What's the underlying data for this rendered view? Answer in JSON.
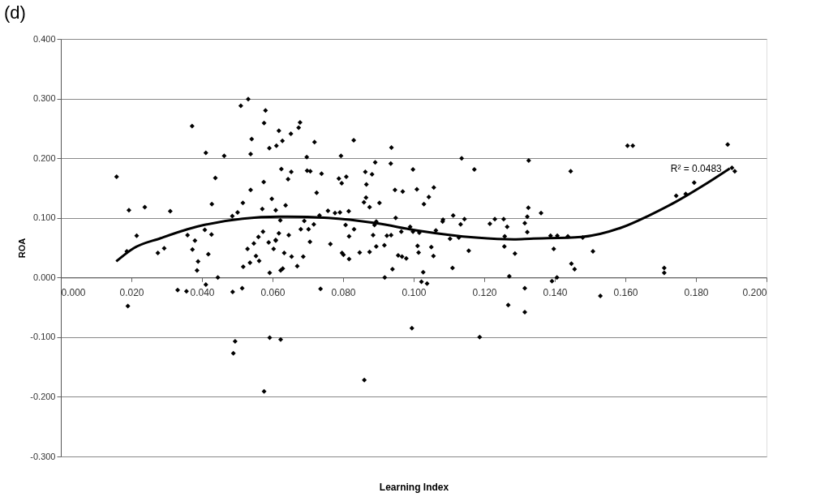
{
  "chart_data": {
    "type": "scatter",
    "title": "(d)",
    "xlabel": "Learning Index",
    "ylabel": "ROA",
    "xlim": [
      0.0,
      0.2
    ],
    "ylim": [
      -0.3,
      0.4
    ],
    "xticks": [
      {
        "value": 0.0,
        "label": "0.000"
      },
      {
        "value": 0.02,
        "label": "0.020"
      },
      {
        "value": 0.04,
        "label": "0.040"
      },
      {
        "value": 0.06,
        "label": "0.060"
      },
      {
        "value": 0.08,
        "label": "0.080"
      },
      {
        "value": 0.1,
        "label": "0.100"
      },
      {
        "value": 0.12,
        "label": "0.120"
      },
      {
        "value": 0.14,
        "label": "0.140"
      },
      {
        "value": 0.16,
        "label": "0.160"
      },
      {
        "value": 0.18,
        "label": "0.180"
      },
      {
        "value": 0.2,
        "label": "0.200"
      }
    ],
    "yticks": [
      {
        "value": -0.3,
        "label": "-0.300"
      },
      {
        "value": -0.2,
        "label": "-0.200"
      },
      {
        "value": -0.1,
        "label": "-0.100"
      },
      {
        "value": 0.0,
        "label": "0.000"
      },
      {
        "value": 0.1,
        "label": "0.100"
      },
      {
        "value": 0.2,
        "label": "0.200"
      },
      {
        "value": 0.3,
        "label": "0.300"
      },
      {
        "value": 0.4,
        "label": "0.400"
      }
    ],
    "grid": "y",
    "annotations": [
      "R² = 0.0483"
    ],
    "series": [
      {
        "type": "scatter",
        "color": "#000000",
        "marker": "diamond",
        "x": [
          0.0531,
          0.051,
          0.058,
          0.0372,
          0.0576,
          0.0618,
          0.0652,
          0.0541,
          0.0628,
          0.0611,
          0.0591,
          0.0411,
          0.0538,
          0.0463,
          0.0158,
          0.0438,
          0.0625,
          0.0653,
          0.0644,
          0.0575,
          0.0538,
          0.0598,
          0.0516,
          0.0428,
          0.0571,
          0.0609,
          0.0637,
          0.0193,
          0.0238,
          0.031,
          0.0501,
          0.0486,
          0.0622,
          0.0215,
          0.0359,
          0.0408,
          0.0427,
          0.038,
          0.0573,
          0.056,
          0.0618,
          0.0646,
          0.0609,
          0.0187,
          0.0275,
          0.0293,
          0.0373,
          0.0418,
          0.0389,
          0.0386,
          0.0445,
          0.0411,
          0.0331,
          0.0356,
          0.0487,
          0.0514,
          0.019,
          0.0494,
          0.0489,
          0.0592,
          0.0623,
          0.0576,
          0.0529,
          0.0517,
          0.0536,
          0.0553,
          0.0562,
          0.0547,
          0.0603,
          0.0633,
          0.0654,
          0.0592,
          0.0623,
          0.0629,
          0.0589,
          0.0609,
          0.0678,
          0.0674,
          0.0719,
          0.083,
          0.0937,
          0.0697,
          0.0794,
          0.0891,
          0.0935,
          0.1136,
          0.1172,
          0.1326,
          0.0998,
          0.0698,
          0.0707,
          0.0739,
          0.0863,
          0.0882,
          0.0788,
          0.0809,
          0.0796,
          0.0866,
          0.0725,
          0.0947,
          0.0969,
          0.1009,
          0.1057,
          0.0865,
          0.0859,
          0.0903,
          0.0875,
          0.1043,
          0.1029,
          0.0757,
          0.0777,
          0.0791,
          0.0816,
          0.0733,
          0.0949,
          0.1112,
          0.1083,
          0.1144,
          0.123,
          0.1255,
          0.1325,
          0.1322,
          0.069,
          0.068,
          0.0702,
          0.0717,
          0.0807,
          0.0831,
          0.0817,
          0.0894,
          0.0889,
          0.099,
          0.1082,
          0.1133,
          0.1216,
          0.1265,
          0.1315,
          0.1322,
          0.1258,
          0.1063,
          0.1103,
          0.1128,
          0.0885,
          0.0924,
          0.0936,
          0.0965,
          0.0998,
          0.1016,
          0.0764,
          0.0706,
          0.0687,
          0.067,
          0.0797,
          0.0801,
          0.0817,
          0.0847,
          0.0875,
          0.0894,
          0.0917,
          0.0956,
          0.0967,
          0.0979,
          0.094,
          0.0918,
          0.1011,
          0.1014,
          0.105,
          0.1056,
          0.1027,
          0.1022,
          0.1038,
          0.111,
          0.1156,
          0.1257,
          0.1287,
          0.1271,
          0.1315,
          0.1268,
          0.1315,
          0.0736,
          0.0995,
          0.1187,
          0.086,
          0.1445,
          0.1606,
          0.1621,
          0.189,
          0.1902,
          0.191,
          0.1795,
          0.1771,
          0.1744,
          0.1361,
          0.1388,
          0.1407,
          0.1437,
          0.1479,
          0.1397,
          0.1508,
          0.1447,
          0.1456,
          0.171,
          0.171,
          0.1406,
          0.1392,
          0.1529
        ],
        "values": [
          0.299,
          0.288,
          0.28,
          0.254,
          0.259,
          0.246,
          0.241,
          0.232,
          0.229,
          0.221,
          0.217,
          0.209,
          0.207,
          0.204,
          0.169,
          0.167,
          0.182,
          0.177,
          0.165,
          0.16,
          0.147,
          0.132,
          0.125,
          0.123,
          0.115,
          0.113,
          0.121,
          0.113,
          0.118,
          0.111,
          0.109,
          0.103,
          0.096,
          0.07,
          0.071,
          0.08,
          0.072,
          0.062,
          0.077,
          0.068,
          0.074,
          0.071,
          0.063,
          0.044,
          0.041,
          0.049,
          0.047,
          0.039,
          0.027,
          0.012,
          0.0,
          -0.012,
          -0.021,
          -0.023,
          -0.024,
          -0.018,
          -0.048,
          -0.107,
          -0.127,
          -0.101,
          -0.104,
          -0.191,
          0.048,
          0.018,
          0.025,
          0.036,
          0.028,
          0.057,
          0.048,
          0.041,
          0.035,
          0.008,
          0.012,
          0.015,
          0.059,
          0.062,
          0.26,
          0.251,
          0.227,
          0.23,
          0.218,
          0.202,
          0.204,
          0.193,
          0.191,
          0.2,
          0.181,
          0.196,
          0.181,
          0.179,
          0.178,
          0.174,
          0.177,
          0.173,
          0.166,
          0.169,
          0.158,
          0.156,
          0.142,
          0.147,
          0.144,
          0.148,
          0.151,
          0.134,
          0.126,
          0.125,
          0.118,
          0.135,
          0.123,
          0.112,
          0.108,
          0.109,
          0.111,
          0.104,
          0.1,
          0.104,
          0.097,
          0.098,
          0.098,
          0.098,
          0.117,
          0.102,
          0.095,
          0.081,
          0.081,
          0.089,
          0.088,
          0.081,
          0.069,
          0.094,
          0.088,
          0.085,
          0.094,
          0.089,
          0.09,
          0.085,
          0.091,
          0.076,
          0.069,
          0.079,
          0.065,
          0.067,
          0.071,
          0.07,
          0.071,
          0.077,
          0.077,
          0.075,
          0.056,
          0.06,
          0.035,
          0.019,
          0.041,
          0.038,
          0.031,
          0.042,
          0.043,
          0.052,
          0.054,
          0.037,
          0.035,
          0.032,
          0.014,
          0.0,
          0.053,
          0.042,
          0.051,
          0.036,
          0.009,
          -0.007,
          -0.01,
          0.016,
          0.045,
          0.052,
          0.04,
          0.002,
          -0.018,
          -0.046,
          -0.058,
          -0.019,
          -0.085,
          -0.1,
          -0.172,
          0.178,
          0.221,
          0.221,
          0.223,
          0.184,
          0.178,
          0.159,
          0.14,
          0.137,
          0.108,
          0.07,
          0.07,
          0.069,
          0.067,
          0.048,
          0.044,
          0.023,
          0.014,
          0.016,
          0.008,
          0.0,
          -0.006,
          -0.031
        ]
      },
      {
        "type": "line",
        "color": "#000000",
        "marker": "none",
        "line_style": "solid",
        "x": [
          0.0157,
          0.0206,
          0.0283,
          0.0359,
          0.0405,
          0.0619,
          0.0642,
          0.0757,
          0.0894,
          0.1009,
          0.1177,
          0.1284,
          0.133,
          0.1475,
          0.159,
          0.1667,
          0.1743,
          0.182,
          0.1896
        ],
        "values": [
          0.027,
          0.049,
          0.066,
          0.081,
          0.088,
          0.102,
          0.102,
          0.1,
          0.091,
          0.079,
          0.067,
          0.064,
          0.065,
          0.068,
          0.084,
          0.104,
          0.127,
          0.154,
          0.183
        ]
      }
    ]
  }
}
